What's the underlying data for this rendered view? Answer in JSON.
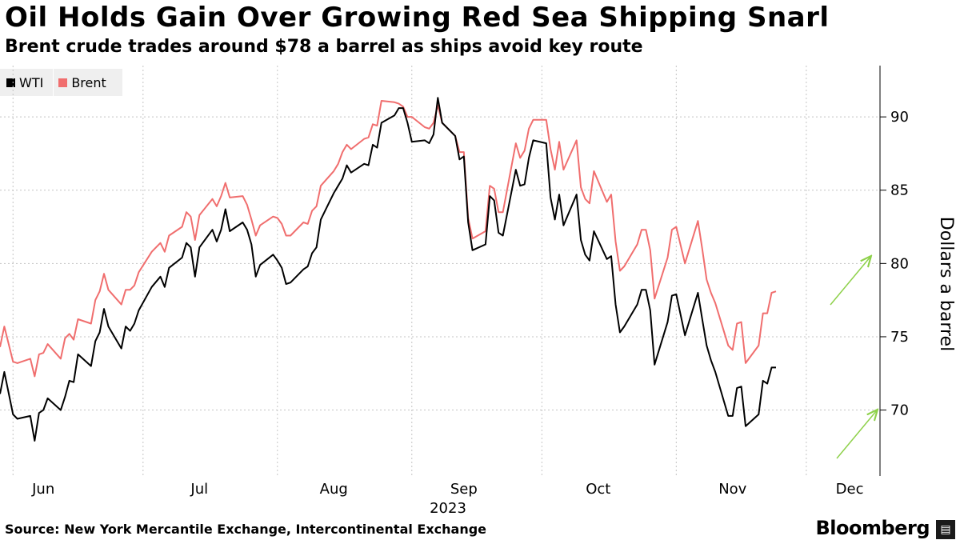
{
  "chart_data": {
    "type": "line",
    "title": "Oil Holds Gain Over Growing Red Sea Shipping Snarl",
    "subtitle": "Brent crude trades around $78 a barrel as ships avoid key route",
    "ylabel": "Dollars a barrel",
    "year_label": "2023",
    "ylim": [
      65.5,
      93.5
    ],
    "y_ticks": [
      70,
      75,
      80,
      85,
      90
    ],
    "x_ticks": [
      "Jun",
      "Jul",
      "Aug",
      "Sep",
      "Oct",
      "Nov",
      "Dec"
    ],
    "x_range": [
      "2023-05-29",
      "2023-12-18"
    ],
    "grid": "vertical dotted lines between months, horizontal dotted lines at y ticks",
    "legend_position": "top-left",
    "series": [
      {
        "name": "WTI",
        "color": "#000000",
        "values": [
          [
            "2023-05-29",
            71.1
          ],
          [
            "2023-05-30",
            72.6
          ],
          [
            "2023-06-01",
            69.7
          ],
          [
            "2023-06-02",
            69.4
          ],
          [
            "2023-06-05",
            69.6
          ],
          [
            "2023-06-06",
            67.9
          ],
          [
            "2023-06-07",
            69.8
          ],
          [
            "2023-06-08",
            70.0
          ],
          [
            "2023-06-09",
            70.8
          ],
          [
            "2023-06-12",
            70.0
          ],
          [
            "2023-06-13",
            70.9
          ],
          [
            "2023-06-14",
            72.0
          ],
          [
            "2023-06-15",
            71.9
          ],
          [
            "2023-06-16",
            73.8
          ],
          [
            "2023-06-19",
            73.0
          ],
          [
            "2023-06-20",
            74.7
          ],
          [
            "2023-06-21",
            75.3
          ],
          [
            "2023-06-22",
            76.9
          ],
          [
            "2023-06-23",
            75.7
          ],
          [
            "2023-06-26",
            74.2
          ],
          [
            "2023-06-27",
            75.7
          ],
          [
            "2023-06-28",
            75.4
          ],
          [
            "2023-06-29",
            75.9
          ],
          [
            "2023-06-30",
            76.8
          ],
          [
            "2023-07-03",
            78.4
          ],
          [
            "2023-07-05",
            79.1
          ],
          [
            "2023-07-06",
            78.4
          ],
          [
            "2023-07-07",
            79.7
          ],
          [
            "2023-07-10",
            80.4
          ],
          [
            "2023-07-11",
            81.4
          ],
          [
            "2023-07-12",
            81.1
          ],
          [
            "2023-07-13",
            79.1
          ],
          [
            "2023-07-14",
            81.1
          ],
          [
            "2023-07-17",
            82.3
          ],
          [
            "2023-07-18",
            81.5
          ],
          [
            "2023-07-19",
            82.3
          ],
          [
            "2023-07-20",
            83.7
          ],
          [
            "2023-07-21",
            82.2
          ],
          [
            "2023-07-24",
            82.8
          ],
          [
            "2023-07-25",
            82.3
          ],
          [
            "2023-07-26",
            81.3
          ],
          [
            "2023-07-27",
            79.1
          ],
          [
            "2023-07-28",
            79.9
          ],
          [
            "2023-07-31",
            80.6
          ],
          [
            "2023-08-01",
            80.2
          ],
          [
            "2023-08-02",
            79.7
          ],
          [
            "2023-08-03",
            78.6
          ],
          [
            "2023-08-04",
            78.7
          ],
          [
            "2023-08-07",
            79.6
          ],
          [
            "2023-08-08",
            79.8
          ],
          [
            "2023-08-09",
            80.7
          ],
          [
            "2023-08-10",
            81.1
          ],
          [
            "2023-08-11",
            83.0
          ],
          [
            "2023-08-14",
            84.8
          ],
          [
            "2023-08-15",
            85.3
          ],
          [
            "2023-08-16",
            85.8
          ],
          [
            "2023-08-17",
            86.7
          ],
          [
            "2023-08-18",
            86.2
          ],
          [
            "2023-08-21",
            86.8
          ],
          [
            "2023-08-22",
            86.7
          ],
          [
            "2023-08-23",
            88.1
          ],
          [
            "2023-08-24",
            87.9
          ],
          [
            "2023-08-25",
            89.6
          ],
          [
            "2023-08-28",
            90.1
          ],
          [
            "2023-08-29",
            90.6
          ],
          [
            "2023-08-30",
            90.6
          ],
          [
            "2023-08-31",
            89.6
          ],
          [
            "2023-09-01",
            88.3
          ],
          [
            "2023-09-04",
            88.4
          ],
          [
            "2023-09-05",
            88.2
          ],
          [
            "2023-09-06",
            88.8
          ],
          [
            "2023-09-07",
            91.3
          ],
          [
            "2023-09-08",
            89.6
          ],
          [
            "2023-09-11",
            88.7
          ],
          [
            "2023-09-12",
            87.1
          ],
          [
            "2023-09-13",
            87.3
          ],
          [
            "2023-09-14",
            82.8
          ],
          [
            "2023-09-15",
            80.9
          ],
          [
            "2023-09-18",
            81.3
          ],
          [
            "2023-09-19",
            84.6
          ],
          [
            "2023-09-20",
            84.3
          ],
          [
            "2023-09-21",
            82.1
          ],
          [
            "2023-09-22",
            81.9
          ],
          [
            "2023-09-25",
            86.4
          ],
          [
            "2023-09-26",
            85.3
          ],
          [
            "2023-09-27",
            85.4
          ],
          [
            "2023-09-28",
            87.2
          ],
          [
            "2023-09-29",
            88.4
          ],
          [
            "2023-10-02",
            88.2
          ],
          [
            "2023-10-03",
            84.5
          ],
          [
            "2023-10-04",
            83.0
          ],
          [
            "2023-10-05",
            84.7
          ],
          [
            "2023-10-06",
            82.6
          ],
          [
            "2023-10-09",
            84.7
          ],
          [
            "2023-10-10",
            81.6
          ],
          [
            "2023-10-11",
            80.6
          ],
          [
            "2023-10-12",
            80.2
          ],
          [
            "2023-10-13",
            82.2
          ],
          [
            "2023-10-16",
            80.3
          ],
          [
            "2023-10-17",
            80.5
          ],
          [
            "2023-10-18",
            77.2
          ],
          [
            "2023-10-19",
            75.3
          ],
          [
            "2023-10-20",
            75.7
          ],
          [
            "2023-10-23",
            77.2
          ],
          [
            "2023-10-24",
            78.2
          ],
          [
            "2023-10-25",
            78.2
          ],
          [
            "2023-10-26",
            76.8
          ],
          [
            "2023-10-27",
            73.1
          ],
          [
            "2023-10-30",
            76.0
          ],
          [
            "2023-10-31",
            77.8
          ],
          [
            "2023-11-01",
            77.9
          ],
          [
            "2023-11-03",
            75.1
          ],
          [
            "2023-11-06",
            78.0
          ],
          [
            "2023-11-07",
            76.2
          ],
          [
            "2023-11-08",
            74.4
          ],
          [
            "2023-11-09",
            73.4
          ],
          [
            "2023-11-10",
            72.6
          ],
          [
            "2023-11-13",
            69.6
          ],
          [
            "2023-11-14",
            69.6
          ],
          [
            "2023-11-15",
            71.5
          ],
          [
            "2023-11-16",
            71.6
          ],
          [
            "2023-11-17",
            68.9
          ],
          [
            "2023-11-20",
            69.7
          ],
          [
            "2023-11-21",
            72.0
          ],
          [
            "2023-11-22",
            71.8
          ],
          [
            "2023-11-23",
            72.9
          ],
          [
            "2023-11-24",
            72.9
          ]
        ]
      },
      {
        "name": "Brent",
        "color": "#f06e6e",
        "values": [
          [
            "2023-05-29",
            74.3
          ],
          [
            "2023-05-30",
            75.7
          ],
          [
            "2023-06-01",
            73.3
          ],
          [
            "2023-06-02",
            73.2
          ],
          [
            "2023-06-05",
            73.5
          ],
          [
            "2023-06-06",
            72.3
          ],
          [
            "2023-06-07",
            73.8
          ],
          [
            "2023-06-08",
            73.9
          ],
          [
            "2023-06-09",
            74.5
          ],
          [
            "2023-06-12",
            73.5
          ],
          [
            "2023-06-13",
            74.9
          ],
          [
            "2023-06-14",
            75.2
          ],
          [
            "2023-06-15",
            74.8
          ],
          [
            "2023-06-16",
            76.2
          ],
          [
            "2023-06-19",
            75.9
          ],
          [
            "2023-06-20",
            77.5
          ],
          [
            "2023-06-21",
            78.1
          ],
          [
            "2023-06-22",
            79.3
          ],
          [
            "2023-06-23",
            78.2
          ],
          [
            "2023-06-26",
            77.2
          ],
          [
            "2023-06-27",
            78.2
          ],
          [
            "2023-06-28",
            78.2
          ],
          [
            "2023-06-29",
            78.5
          ],
          [
            "2023-06-30",
            79.4
          ],
          [
            "2023-07-03",
            80.8
          ],
          [
            "2023-07-05",
            81.4
          ],
          [
            "2023-07-06",
            80.8
          ],
          [
            "2023-07-07",
            81.9
          ],
          [
            "2023-07-10",
            82.5
          ],
          [
            "2023-07-11",
            83.5
          ],
          [
            "2023-07-12",
            83.2
          ],
          [
            "2023-07-13",
            81.6
          ],
          [
            "2023-07-14",
            83.3
          ],
          [
            "2023-07-17",
            84.4
          ],
          [
            "2023-07-18",
            83.9
          ],
          [
            "2023-07-19",
            84.6
          ],
          [
            "2023-07-20",
            85.5
          ],
          [
            "2023-07-21",
            84.5
          ],
          [
            "2023-07-24",
            84.6
          ],
          [
            "2023-07-25",
            84.0
          ],
          [
            "2023-07-26",
            83.0
          ],
          [
            "2023-07-27",
            81.9
          ],
          [
            "2023-07-28",
            82.6
          ],
          [
            "2023-07-31",
            83.2
          ],
          [
            "2023-08-01",
            83.1
          ],
          [
            "2023-08-02",
            82.7
          ],
          [
            "2023-08-03",
            81.9
          ],
          [
            "2023-08-04",
            81.9
          ],
          [
            "2023-08-07",
            82.8
          ],
          [
            "2023-08-08",
            82.7
          ],
          [
            "2023-08-09",
            83.6
          ],
          [
            "2023-08-10",
            83.9
          ],
          [
            "2023-08-11",
            85.3
          ],
          [
            "2023-08-14",
            86.3
          ],
          [
            "2023-08-15",
            86.8
          ],
          [
            "2023-08-16",
            87.6
          ],
          [
            "2023-08-17",
            88.1
          ],
          [
            "2023-08-18",
            87.8
          ],
          [
            "2023-08-21",
            88.5
          ],
          [
            "2023-08-22",
            88.6
          ],
          [
            "2023-08-23",
            89.5
          ],
          [
            "2023-08-24",
            89.4
          ],
          [
            "2023-08-25",
            91.1
          ],
          [
            "2023-08-28",
            91.0
          ],
          [
            "2023-08-29",
            90.9
          ],
          [
            "2023-08-30",
            90.7
          ],
          [
            "2023-08-31",
            90.0
          ],
          [
            "2023-09-01",
            90.0
          ],
          [
            "2023-09-04",
            89.3
          ],
          [
            "2023-09-05",
            89.2
          ],
          [
            "2023-09-06",
            89.6
          ],
          [
            "2023-09-07",
            90.8
          ],
          [
            "2023-09-08",
            89.6
          ],
          [
            "2023-09-11",
            88.7
          ],
          [
            "2023-09-12",
            87.6
          ],
          [
            "2023-09-13",
            87.6
          ],
          [
            "2023-09-14",
            83.1
          ],
          [
            "2023-09-15",
            81.7
          ],
          [
            "2023-09-18",
            82.2
          ],
          [
            "2023-09-19",
            85.3
          ],
          [
            "2023-09-20",
            85.1
          ],
          [
            "2023-09-21",
            83.5
          ],
          [
            "2023-09-22",
            83.5
          ],
          [
            "2023-09-25",
            88.2
          ],
          [
            "2023-09-26",
            87.2
          ],
          [
            "2023-09-27",
            87.7
          ],
          [
            "2023-09-28",
            89.2
          ],
          [
            "2023-09-29",
            89.8
          ],
          [
            "2023-10-02",
            89.8
          ],
          [
            "2023-10-03",
            87.8
          ],
          [
            "2023-10-04",
            86.4
          ],
          [
            "2023-10-05",
            88.3
          ],
          [
            "2023-10-06",
            86.4
          ],
          [
            "2023-10-09",
            88.4
          ],
          [
            "2023-10-10",
            85.2
          ],
          [
            "2023-10-11",
            84.4
          ],
          [
            "2023-10-12",
            84.1
          ],
          [
            "2023-10-13",
            86.3
          ],
          [
            "2023-10-16",
            84.2
          ],
          [
            "2023-10-17",
            84.7
          ],
          [
            "2023-10-18",
            81.5
          ],
          [
            "2023-10-19",
            79.5
          ],
          [
            "2023-10-20",
            79.8
          ],
          [
            "2023-10-23",
            81.3
          ],
          [
            "2023-10-24",
            82.3
          ],
          [
            "2023-10-25",
            82.3
          ],
          [
            "2023-10-26",
            80.9
          ],
          [
            "2023-10-27",
            77.6
          ],
          [
            "2023-10-30",
            80.4
          ],
          [
            "2023-10-31",
            82.3
          ],
          [
            "2023-11-01",
            82.5
          ],
          [
            "2023-11-03",
            80.0
          ],
          [
            "2023-11-06",
            82.9
          ],
          [
            "2023-11-07",
            81.0
          ],
          [
            "2023-11-08",
            78.9
          ],
          [
            "2023-11-09",
            78.0
          ],
          [
            "2023-11-10",
            77.3
          ],
          [
            "2023-11-13",
            74.4
          ],
          [
            "2023-11-14",
            74.1
          ],
          [
            "2023-11-15",
            75.9
          ],
          [
            "2023-11-16",
            76.0
          ],
          [
            "2023-11-17",
            73.2
          ],
          [
            "2023-11-20",
            74.4
          ],
          [
            "2023-11-21",
            76.6
          ],
          [
            "2023-11-22",
            76.6
          ],
          [
            "2023-11-23",
            78.0
          ],
          [
            "2023-11-24",
            78.1
          ]
        ]
      }
    ],
    "annotations": "two green arrows pointing up-right near the latest values"
  },
  "legend": {
    "wti_label": "WTI",
    "brent_label": "Brent"
  },
  "footer": {
    "source": "Source: New York Mercantile Exchange, Intercontinental Exchange",
    "brand": "Bloomberg"
  },
  "colors": {
    "wti": "#000000",
    "brent": "#f06e6e",
    "arrow": "#8ed14b",
    "grid": "#c4c4c4",
    "legend_bg": "#efefef"
  }
}
